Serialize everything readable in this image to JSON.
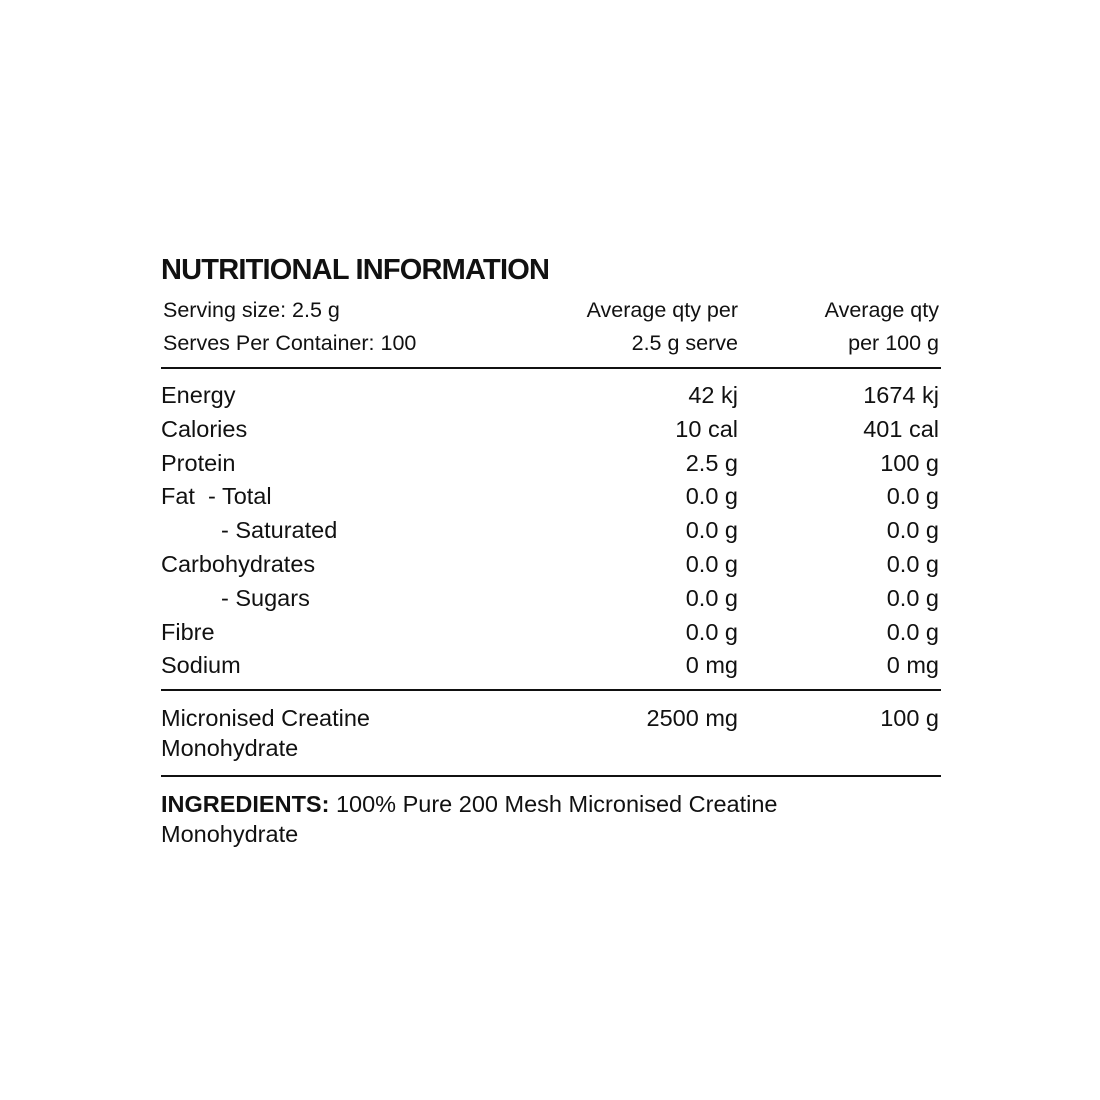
{
  "title": "NUTRITIONAL INFORMATION",
  "header": {
    "serving_size": "Serving size: 2.5 g",
    "serves": "Serves Per Container: 100",
    "col1_line1": "Average qty per",
    "col1_line2": "2.5 g serve",
    "col2_line1": "Average qty",
    "col2_line2": "per 100 g"
  },
  "rows": [
    {
      "label": "Energy",
      "per_serve": "42 kj",
      "per_100g": "1674 kj"
    },
    {
      "label": "Calories",
      "per_serve": "10 cal",
      "per_100g": "401 cal"
    },
    {
      "label": "Protein",
      "per_serve": "2.5 g",
      "per_100g": "100 g"
    },
    {
      "label": "Fat  - Total",
      "per_serve": "0.0 g",
      "per_100g": "0.0 g"
    },
    {
      "label": "- Saturated",
      "per_serve": "0.0 g",
      "per_100g": "0.0 g"
    },
    {
      "label": "Carbohydrates",
      "per_serve": "0.0 g",
      "per_100g": "0.0 g"
    },
    {
      "label": "- Sugars",
      "per_serve": "0.0 g",
      "per_100g": "0.0 g"
    },
    {
      "label": "Fibre",
      "per_serve": "0.0 g",
      "per_100g": "0.0 g"
    },
    {
      "label": "Sodium",
      "per_serve": "0 mg",
      "per_100g": "0 mg"
    }
  ],
  "creatine": {
    "label_line1": "Micronised Creatine",
    "label_line2": "Monohydrate",
    "per_serve": "2500 mg",
    "per_100g": "100 g"
  },
  "ingredients": {
    "label": "INGREDIENTS:",
    "text": " 100% Pure 200 Mesh Micronised Creatine Monohydrate"
  }
}
